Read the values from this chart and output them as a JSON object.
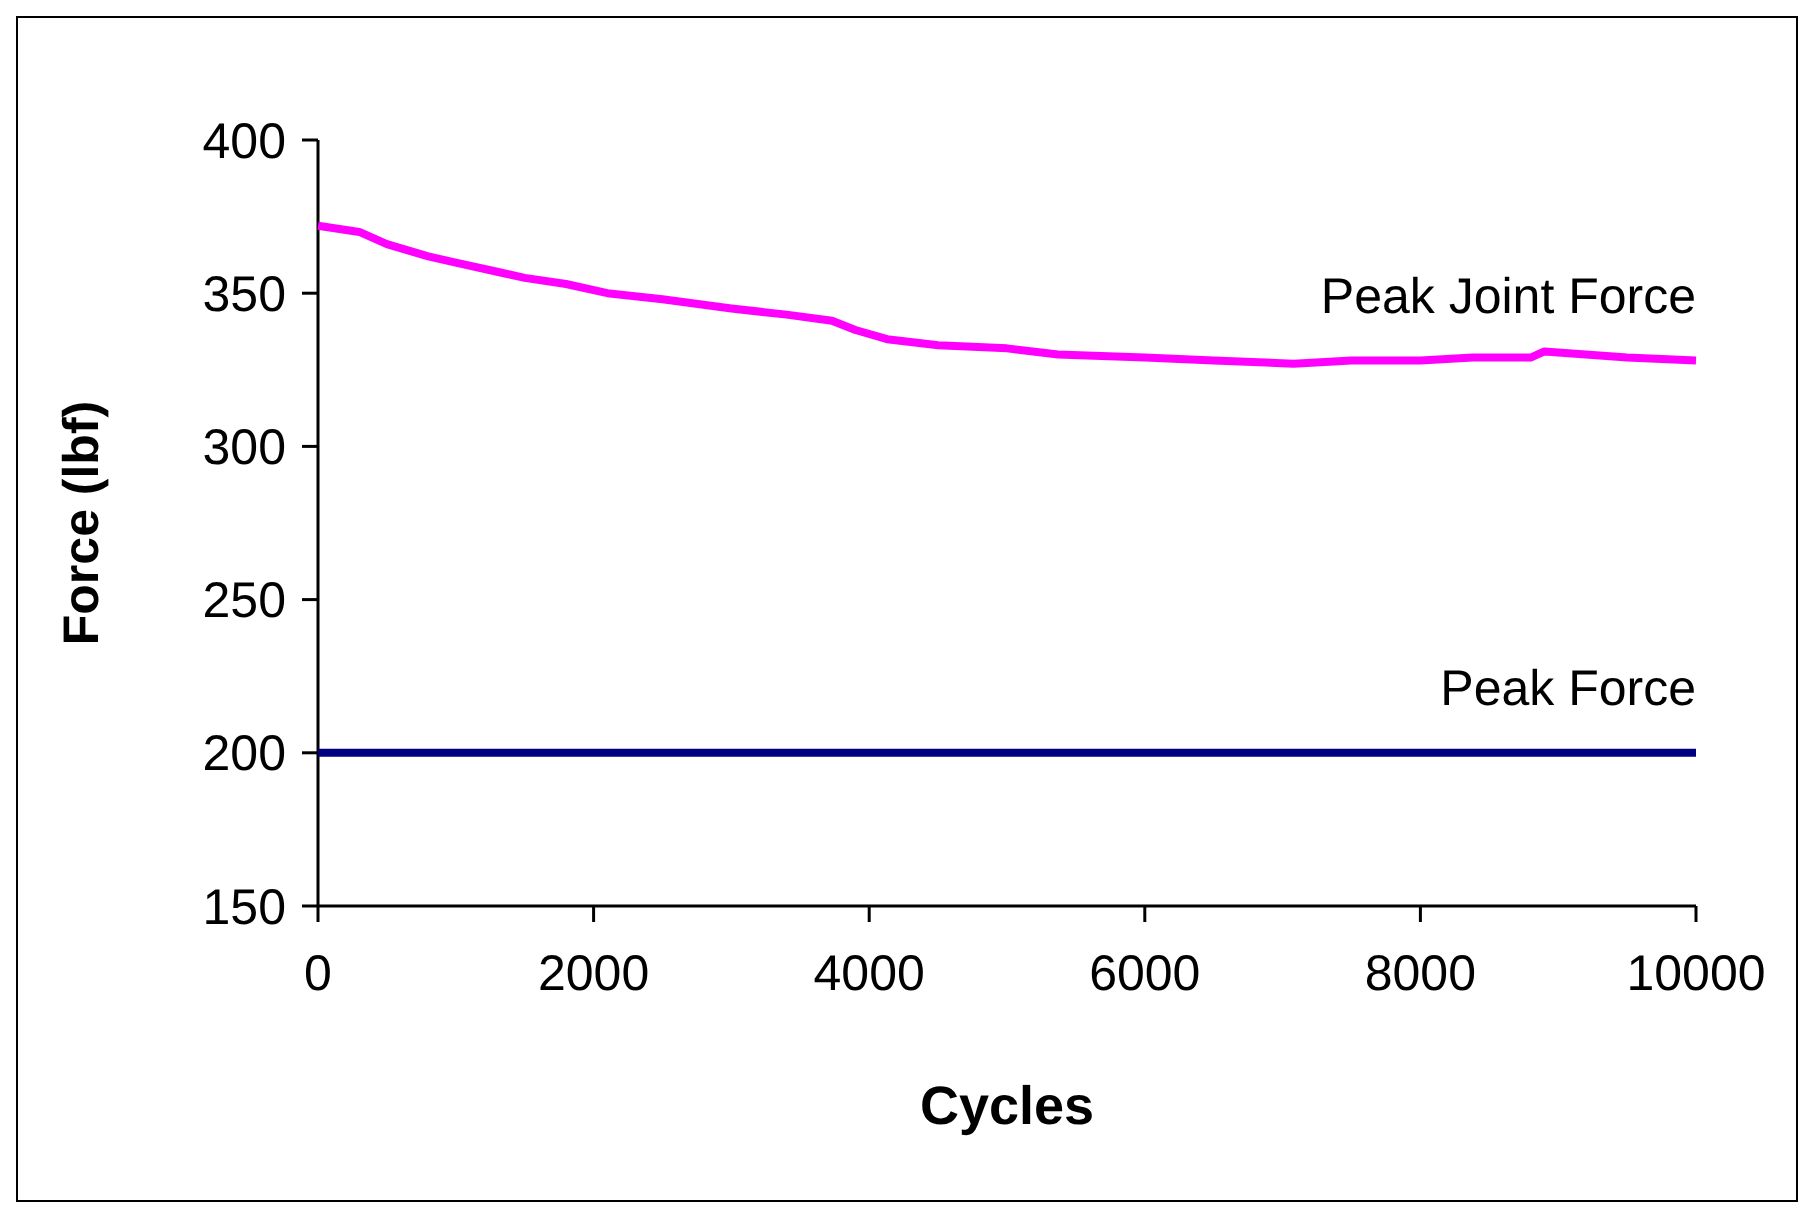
{
  "chart_data": {
    "type": "line",
    "xlabel": "Cycles",
    "ylabel": "Force (lbf)",
    "xlim": [
      0,
      10000
    ],
    "ylim": [
      150,
      400
    ],
    "xticks": [
      0,
      2000,
      4000,
      6000,
      8000,
      10000
    ],
    "yticks": [
      150,
      200,
      250,
      300,
      350,
      400
    ],
    "grid": false,
    "legend": false,
    "marker": "none",
    "line_style": "solid",
    "series": [
      {
        "name": "Peak Joint Force",
        "color": "#ff00ff",
        "x": [
          0,
          300,
          500,
          800,
          1000,
          1300,
          1500,
          1800,
          2100,
          2500,
          3000,
          3400,
          3730,
          3900,
          4130,
          4500,
          5000,
          5370,
          6000,
          6500,
          7080,
          7500,
          8000,
          8380,
          8800,
          8900,
          9500,
          10000
        ],
        "values": [
          372,
          370,
          366,
          362,
          360,
          357,
          355,
          353,
          350,
          348,
          345,
          343,
          341,
          338,
          335,
          333,
          332,
          330,
          329,
          328,
          327,
          328,
          328,
          329,
          329,
          331,
          329,
          328
        ]
      },
      {
        "name": "Peak Force",
        "color": "#000080",
        "x": [
          0,
          10000
        ],
        "values": [
          200,
          200
        ]
      }
    ]
  }
}
